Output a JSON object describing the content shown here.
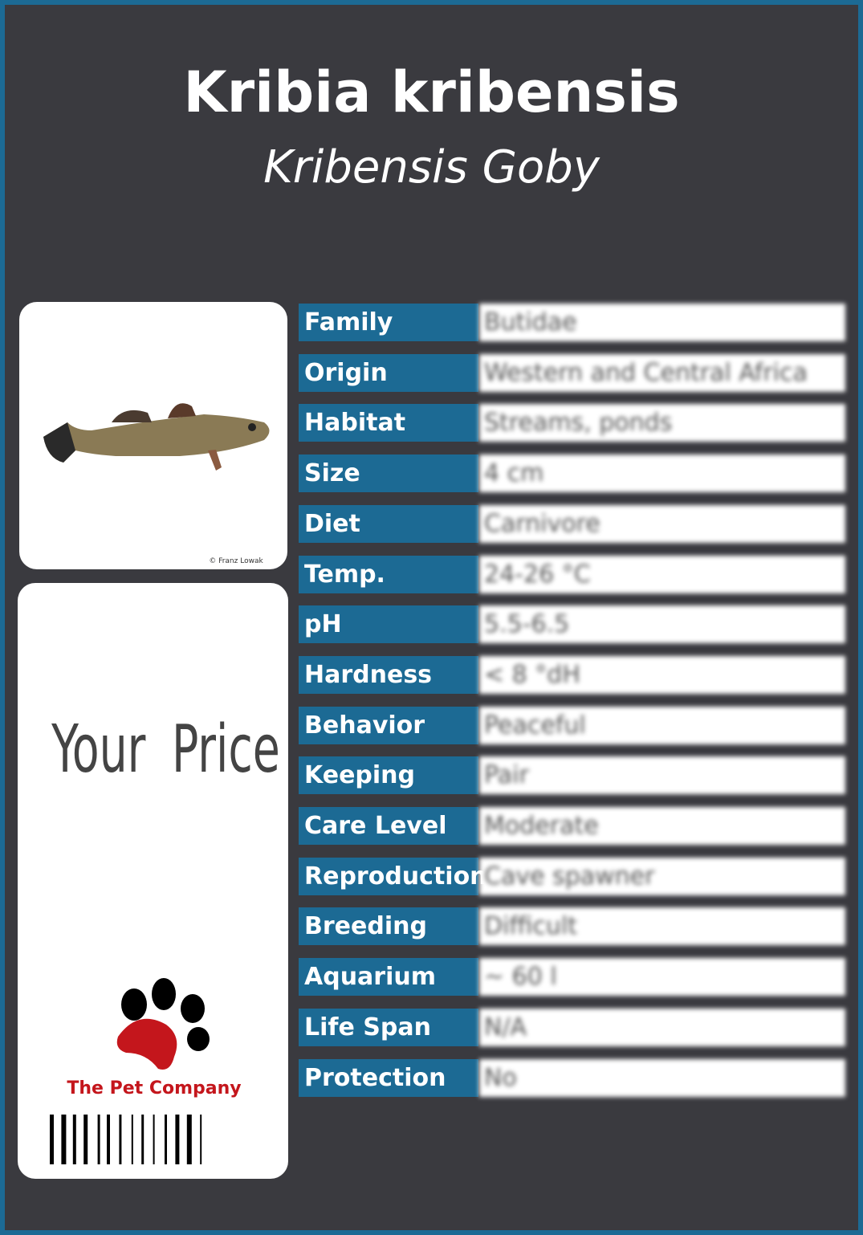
{
  "header": {
    "title": "Kribia kribensis",
    "subtitle": "Kribensis Goby"
  },
  "photo": {
    "credit": "© Franz Lowak"
  },
  "price": {
    "label": "Your Price"
  },
  "brand": {
    "name": "The Pet Company"
  },
  "table": {
    "rows": [
      [
        "Family",
        "Butidae"
      ],
      [
        "Origin",
        "Western and Central Africa"
      ],
      [
        "Habitat",
        "Streams, ponds"
      ],
      [
        "Size",
        "4 cm"
      ],
      [
        "Diet",
        "Carnivore"
      ],
      [
        "Temp.",
        "24-26 °C"
      ],
      [
        "pH",
        "5.5-6.5"
      ],
      [
        "Hardness",
        "< 8 °dH"
      ],
      [
        "Behavior",
        "Peaceful"
      ],
      [
        "Keeping",
        "Pair"
      ],
      [
        "Care Level",
        "Moderate"
      ],
      [
        "Reproduction",
        "Cave spawner"
      ],
      [
        "Breeding",
        "Difficult"
      ],
      [
        "Aquarium",
        "~ 60 l"
      ],
      [
        "Life Span",
        "N/A"
      ],
      [
        "Protection",
        "No"
      ]
    ]
  }
}
